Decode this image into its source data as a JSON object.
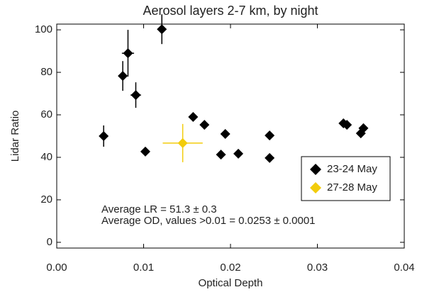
{
  "chart_data": {
    "type": "scatter",
    "title": "Aerosol layers 2-7 km, by night",
    "x_label": "Optical Depth",
    "y_label": "Lidar Ratio",
    "xlim": [
      0,
      0.04
    ],
    "ylim": [
      -2.7,
      102.7
    ],
    "xticks": [
      {
        "value": 0,
        "label": "0.00"
      },
      0.01,
      0.02,
      0.03,
      0.04
    ],
    "yticks": [
      0,
      20,
      40,
      60,
      80,
      100
    ],
    "legend": "lower right",
    "series": [
      {
        "name": "23-24 May",
        "color": "#000000",
        "x": [
          0.0054,
          0.0076,
          0.0082,
          0.0091,
          0.0102,
          0.0121,
          0.0157,
          0.017,
          0.0189,
          0.0194,
          0.0209,
          0.0245,
          0.0245,
          0.033,
          0.0334,
          0.035,
          0.0353
        ],
        "values": [
          50,
          78.3,
          89,
          69.3,
          42.7,
          100.3,
          59,
          55.3,
          41.3,
          51,
          41.7,
          50.3,
          39.7,
          56,
          55.3,
          51.3,
          53.7
        ],
        "xerr": [
          0.0002,
          0.0003,
          0.0007,
          0.0006,
          0.0004,
          0.0002,
          0.0003,
          0.0003,
          0.0005,
          0.0003,
          0.0003,
          0.0003,
          0.0005,
          0.0004,
          0.0004,
          0.0003,
          0.0003
        ],
        "yerr": [
          5,
          7,
          11,
          6,
          2,
          7,
          2,
          1,
          1,
          1,
          1,
          1,
          1,
          1,
          1,
          1,
          1
        ]
      },
      {
        "name": "27-28 May",
        "color": "#f2cc0c",
        "x": [
          0.0145
        ],
        "values": [
          46.7
        ],
        "xerr": [
          0.0023
        ],
        "yerr": [
          9
        ]
      }
    ],
    "annotations": [
      "Average LR =   51.3 ± 0.3",
      "Average OD, values >0.01 = 0.0253 ± 0.0001"
    ]
  }
}
